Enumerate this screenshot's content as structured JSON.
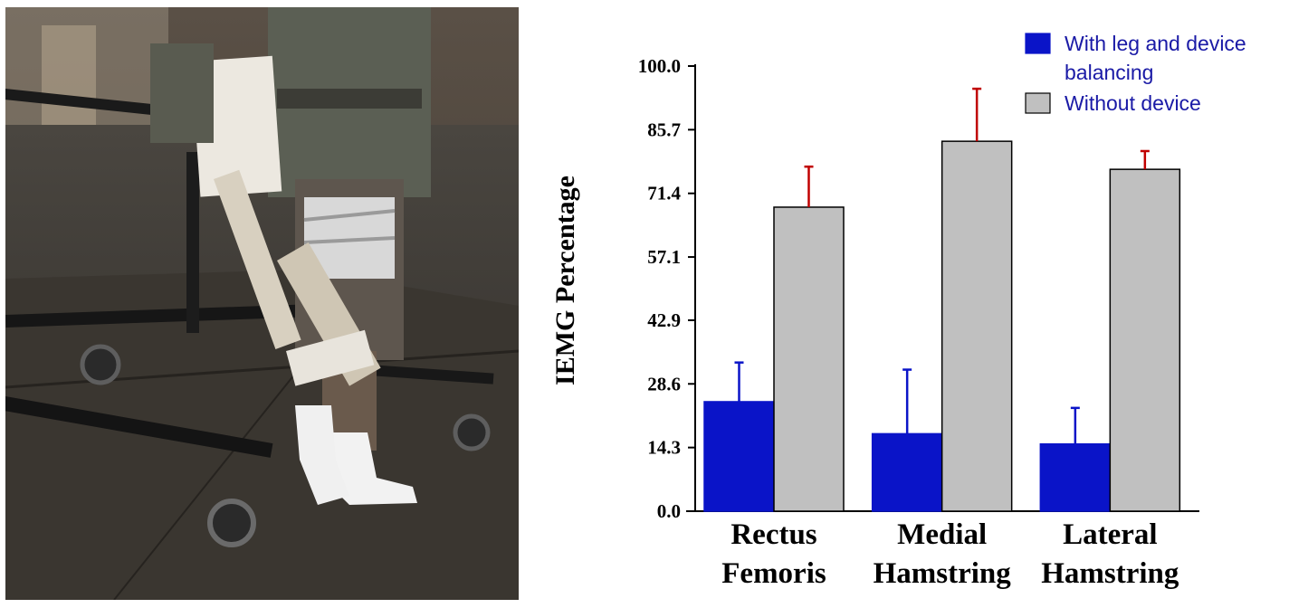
{
  "colors": {
    "series1": "#0a14c8",
    "series2": "#c0c0c0",
    "errorbar_series1": "#0a14c8",
    "errorbar_series2": "#c00000",
    "legend_text": "#1a1aa6"
  },
  "photo": {
    "description_icon": "exoskeleton-walker-photo"
  },
  "chart_data": {
    "type": "bar",
    "ylabel": "IEMG Percentage",
    "xlabel": "",
    "ylim": [
      0,
      100
    ],
    "yticks": [
      "0.0",
      "14.3",
      "28.6",
      "42.9",
      "57.1",
      "71.4",
      "85.7",
      "100.0"
    ],
    "categories": [
      [
        "Rectus",
        "Femoris"
      ],
      [
        "Medial",
        "Hamstring"
      ],
      [
        "Lateral",
        "Hamstring"
      ]
    ],
    "series": [
      {
        "name": "With leg and device balancing",
        "legend_lines": [
          "With leg and device",
          "balancing"
        ],
        "values": [
          24.6,
          17.4,
          15.1
        ],
        "errors": [
          8.8,
          14.4,
          8.1
        ]
      },
      {
        "name": "Without device",
        "legend_lines": [
          "Without device"
        ],
        "values": [
          68.3,
          83.1,
          76.8
        ],
        "errors": [
          9.1,
          11.8,
          4.1
        ]
      }
    ],
    "legend_position": "top-right",
    "grid": false
  }
}
